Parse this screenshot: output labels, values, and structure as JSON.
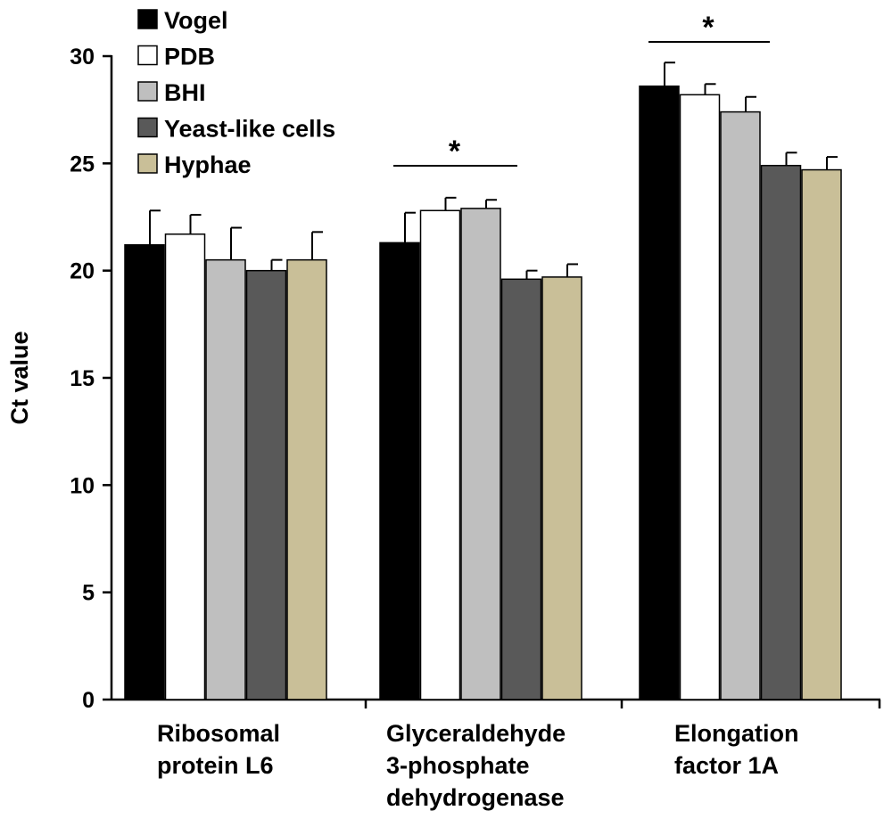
{
  "chart_data": {
    "type": "bar",
    "title": "",
    "xlabel": "",
    "ylabel": "Ct value",
    "ylim": [
      0,
      30
    ],
    "yticks": [
      0,
      5,
      10,
      15,
      20,
      25,
      30
    ],
    "grid": false,
    "legend_position": "top-left",
    "categories": [
      [
        "Ribosomal",
        "protein L6"
      ],
      [
        "Glyceraldehyde",
        "3-phosphate",
        "dehydrogenase"
      ],
      [
        "Elongation",
        "factor 1A"
      ]
    ],
    "series": [
      {
        "name": "Vogel",
        "color": "#000000",
        "values": [
          21.2,
          21.3,
          28.6
        ],
        "errors": [
          1.6,
          1.4,
          1.1
        ]
      },
      {
        "name": "PDB",
        "color": "#ffffff",
        "values": [
          21.7,
          22.8,
          28.2
        ],
        "errors": [
          0.9,
          0.6,
          0.5
        ]
      },
      {
        "name": "BHI",
        "color": "#bfbfbf",
        "values": [
          20.5,
          22.9,
          27.4
        ],
        "errors": [
          1.5,
          0.4,
          0.7
        ]
      },
      {
        "name": "Yeast-like cells",
        "color": "#595959",
        "values": [
          20.0,
          19.6,
          24.9
        ],
        "errors": [
          0.5,
          0.4,
          0.6
        ]
      },
      {
        "name": "Hyphae",
        "color": "#c9bf98",
        "values": [
          20.5,
          19.7,
          24.7
        ],
        "errors": [
          1.3,
          0.6,
          0.6
        ]
      }
    ],
    "annotations": [
      {
        "text": "*",
        "category_index": 1,
        "meaning": "significance"
      },
      {
        "text": "*",
        "category_index": 2,
        "meaning": "significance"
      }
    ]
  }
}
